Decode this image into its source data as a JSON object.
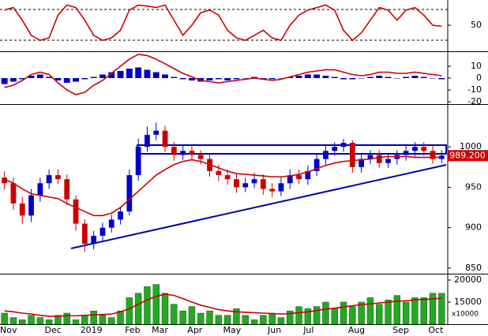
{
  "chart_data": [
    {
      "type": "line",
      "ylim": [
        0,
        100
      ],
      "yticks": [
        50
      ],
      "series": [
        {
          "color": "#cc0000",
          "values": [
            80,
            85,
            60,
            30,
            20,
            25,
            70,
            90,
            85,
            60,
            30,
            20,
            25,
            40,
            80,
            90,
            88,
            85,
            90,
            60,
            30,
            50,
            75,
            80,
            70,
            40,
            25,
            20,
            30,
            40,
            25,
            20,
            50,
            70,
            80,
            85,
            90,
            80,
            40,
            20,
            35,
            60,
            85,
            80,
            60,
            80,
            85,
            70,
            50,
            48
          ]
        }
      ]
    },
    {
      "type": "combo",
      "ylim": [
        -21.3,
        21.3
      ],
      "yticks": [
        10,
        0,
        -10,
        -20
      ],
      "series": [
        {
          "style": "bar",
          "color": "#0000cc",
          "values": [
            -5,
            -3,
            -1,
            2,
            3,
            1,
            -2,
            -4,
            -3,
            -1,
            1,
            3,
            5,
            6,
            8,
            9,
            7,
            5,
            3,
            1,
            -1,
            -2,
            -3,
            -2,
            -1,
            -2,
            -1,
            0,
            1,
            -1,
            -1,
            0,
            1,
            2,
            3,
            3,
            2,
            1,
            -1,
            -1,
            0,
            1,
            2,
            1,
            0,
            1,
            2,
            1,
            0,
            -1
          ]
        },
        {
          "style": "line",
          "color": "#cc0000",
          "values": [
            -8,
            -6,
            -2,
            3,
            5,
            3,
            -4,
            -10,
            -14,
            -12,
            -6,
            -2,
            4,
            10,
            16,
            20,
            19,
            16,
            12,
            8,
            4,
            1,
            -2,
            -3,
            -4,
            -3,
            -2,
            -1,
            0,
            -1,
            -2,
            -1,
            1,
            3,
            5,
            6,
            7,
            7,
            5,
            3,
            2,
            3,
            5,
            5,
            4,
            4,
            5,
            4,
            3,
            2
          ]
        }
      ]
    },
    {
      "type": "candlestick",
      "ylim": [
        845,
        1050
      ],
      "yticks": [
        1000,
        950,
        900,
        850
      ],
      "up_color": "#0000cc",
      "down_color": "#cc0000",
      "last_label": "989.200",
      "open": [
        962,
        955,
        930,
        915,
        940,
        955,
        965,
        960,
        935,
        905,
        880,
        890,
        900,
        910,
        920,
        965,
        1000,
        1015,
        1020,
        1000,
        990,
        995,
        990,
        985,
        970,
        965,
        960,
        950,
        955,
        960,
        948,
        945,
        955,
        965,
        960,
        970,
        985,
        995,
        1000,
        1005,
        975,
        985,
        990,
        980,
        985,
        990,
        995,
        1000,
        995,
        985
      ],
      "high": [
        970,
        962,
        938,
        948,
        962,
        972,
        972,
        966,
        940,
        910,
        896,
        906,
        916,
        926,
        972,
        1010,
        1025,
        1030,
        1026,
        1006,
        1002,
        1002,
        996,
        992,
        978,
        972,
        966,
        962,
        968,
        966,
        955,
        962,
        972,
        972,
        977,
        992,
        1002,
        1006,
        1010,
        1008,
        992,
        996,
        996,
        991,
        996,
        1002,
        1006,
        1006,
        1001,
        996
      ],
      "low": [
        947,
        922,
        905,
        907,
        932,
        948,
        954,
        928,
        896,
        870,
        873,
        884,
        894,
        904,
        915,
        958,
        994,
        1008,
        994,
        983,
        984,
        984,
        978,
        963,
        958,
        953,
        943,
        944,
        949,
        941,
        938,
        939,
        948,
        954,
        953,
        964,
        978,
        989,
        994,
        968,
        968,
        979,
        974,
        974,
        978,
        983,
        988,
        989,
        979,
        980
      ],
      "close": [
        955,
        930,
        915,
        940,
        955,
        965,
        960,
        935,
        905,
        880,
        890,
        900,
        910,
        920,
        965,
        1000,
        1015,
        1020,
        1000,
        990,
        995,
        990,
        985,
        970,
        965,
        960,
        950,
        955,
        960,
        948,
        945,
        955,
        965,
        960,
        970,
        985,
        995,
        1000,
        1005,
        975,
        985,
        990,
        980,
        985,
        990,
        995,
        1000,
        995,
        985,
        989.2
      ],
      "series": [
        {
          "color": "#cc0000",
          "values": [
            960,
            955,
            948,
            942,
            940,
            938,
            936,
            930,
            925,
            920,
            915,
            915,
            918,
            925,
            935,
            945,
            955,
            965,
            972,
            978,
            982,
            984,
            982,
            978,
            974,
            970,
            967,
            966,
            965,
            964,
            963,
            963,
            964,
            966,
            969,
            973,
            977,
            980,
            982,
            983,
            984,
            985,
            987,
            988,
            988,
            988,
            987,
            987,
            987,
            987
          ]
        }
      ]
    },
    {
      "type": "combo",
      "ylim": [
        10000,
        20900
      ],
      "yticks": [
        20000,
        15000
      ],
      "y_unit_label": "x10000",
      "categories": [
        "Nov",
        null,
        null,
        null,
        null,
        "Dec",
        null,
        null,
        null,
        "2019",
        null,
        null,
        null,
        null,
        "Feb",
        null,
        null,
        "Mar",
        null,
        null,
        null,
        "Apr",
        null,
        null,
        null,
        "May",
        null,
        null,
        null,
        null,
        "Jun",
        null,
        null,
        null,
        "Jul",
        null,
        null,
        null,
        null,
        "Aug",
        null,
        null,
        null,
        null,
        "Sep",
        null,
        null,
        null,
        "Oct",
        null
      ],
      "series": [
        {
          "style": "bar",
          "color": "#22aa22",
          "values": [
            12500,
            11500,
            11000,
            12000,
            11500,
            11000,
            12000,
            12500,
            11000,
            12000,
            13000,
            12000,
            11500,
            13000,
            16000,
            17000,
            18500,
            19000,
            17000,
            14500,
            13000,
            14000,
            12500,
            13000,
            12000,
            12000,
            13500,
            12000,
            11000,
            12000,
            12500,
            11500,
            13000,
            14000,
            13500,
            14000,
            15000,
            13500,
            15000,
            14000,
            15000,
            16000,
            14500,
            15500,
            16500,
            15000,
            16000,
            16000,
            17000,
            17000
          ]
        },
        {
          "style": "line",
          "color": "#cc0000",
          "values": [
            13000,
            12800,
            12500,
            12300,
            12000,
            11800,
            11800,
            11900,
            11900,
            12000,
            12100,
            12200,
            12300,
            12800,
            13500,
            14500,
            15500,
            16300,
            16800,
            16500,
            15800,
            15000,
            14300,
            13800,
            13300,
            13000,
            12800,
            12700,
            12600,
            12500,
            12400,
            12300,
            12400,
            12600,
            12800,
            13100,
            13400,
            13600,
            13900,
            14200,
            14400,
            14600,
            14800,
            15000,
            15200,
            15300,
            15500,
            15600,
            15700,
            15900
          ]
        }
      ]
    }
  ]
}
